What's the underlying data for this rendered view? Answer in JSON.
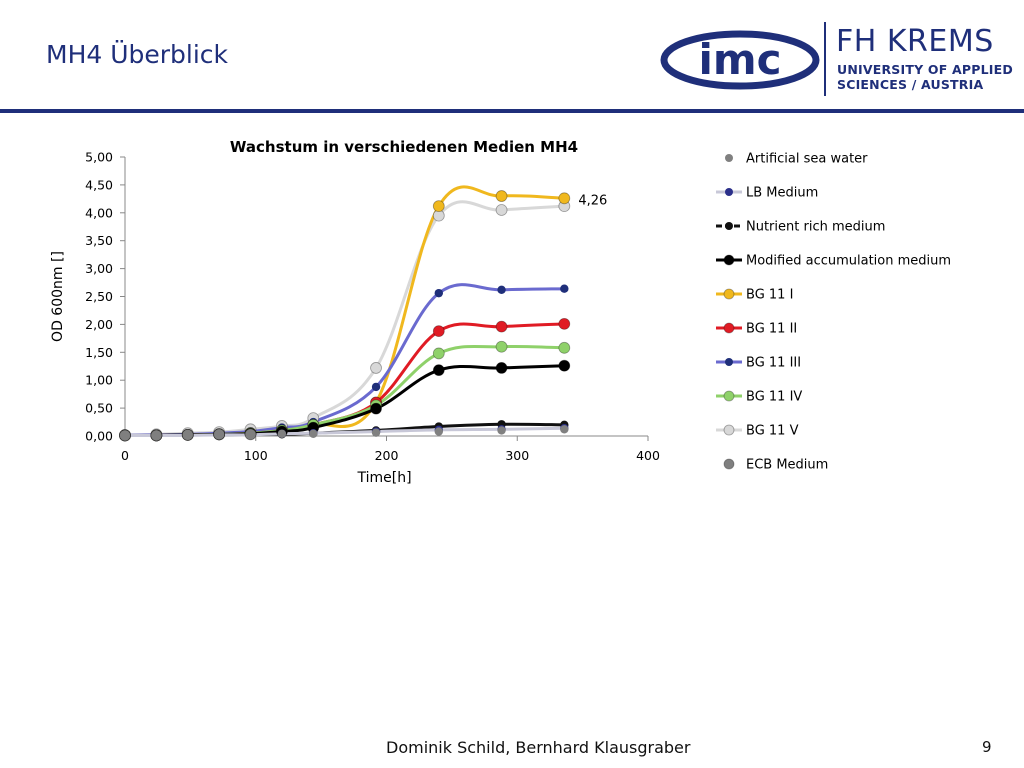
{
  "slide": {
    "title": "MH4 Überblick",
    "footer": "Dominik Schild, Bernhard Klausgraber",
    "page_number": "9"
  },
  "logo": {
    "imc_text": "imc",
    "fh_name": "FH KREMS",
    "fh_sub1": "UNIVERSITY OF APPLIED",
    "fh_sub2": "SCIENCES / AUSTRIA",
    "brand_color": "#1f2f7a"
  },
  "chart_data": {
    "type": "line",
    "title": "Wachstum in verschiedenen Medien MH4",
    "xlabel": "Time[h]",
    "ylabel": "OD 600nm []",
    "xlim": [
      0,
      400
    ],
    "ylim": [
      0,
      5
    ],
    "xticks": [
      "0",
      "100",
      "200",
      "300",
      "400"
    ],
    "yticks": [
      "0,00",
      "0,50",
      "1,00",
      "1,50",
      "2,00",
      "2,50",
      "3,00",
      "3,50",
      "4,00",
      "4,50",
      "5,00"
    ],
    "grid": false,
    "legend_position": "right",
    "annotation": {
      "text": "4,26",
      "series": "BG 11 I",
      "x": 336,
      "y": 4.26
    },
    "series": [
      {
        "name": "Artificial sea water",
        "color": "#808080",
        "line": false,
        "marker": "small",
        "x": [
          0,
          24,
          48,
          72,
          96,
          120,
          144,
          192,
          240,
          288,
          336
        ],
        "y": [
          0.01,
          0.02,
          0.03,
          0.03,
          0.03,
          0.04,
          0.04,
          0.06,
          0.08,
          0.1,
          0.12
        ]
      },
      {
        "name": "LB Medium",
        "color": "#c8c8d8",
        "line": true,
        "markerColor": "#2b2f8a",
        "marker": "small",
        "x": [
          0,
          24,
          48,
          72,
          96,
          120,
          144,
          192,
          240,
          288,
          336
        ],
        "y": [
          0.01,
          0.01,
          0.01,
          0.02,
          0.02,
          0.04,
          0.05,
          0.08,
          0.11,
          0.12,
          0.14
        ]
      },
      {
        "name": "Nutrient rich medium",
        "color": "#111111",
        "line": true,
        "dashed": true,
        "marker": "small",
        "x": [
          0,
          24,
          48,
          72,
          96,
          120,
          144,
          192,
          240,
          288,
          336
        ],
        "y": [
          0.01,
          0.01,
          0.02,
          0.02,
          0.03,
          0.03,
          0.05,
          0.1,
          0.17,
          0.21,
          0.2
        ]
      },
      {
        "name": "Modified accumulation medium",
        "color": "#000000",
        "line": true,
        "marker": "large",
        "x": [
          0,
          24,
          48,
          72,
          96,
          120,
          144,
          192,
          240,
          288,
          336
        ],
        "y": [
          0.01,
          0.01,
          0.02,
          0.03,
          0.04,
          0.08,
          0.15,
          0.49,
          1.18,
          1.22,
          1.26
        ]
      },
      {
        "name": "BG 11 I",
        "color": "#f0b81e",
        "line": true,
        "marker": "large",
        "x": [
          0,
          24,
          48,
          72,
          96,
          120,
          144,
          192,
          240,
          288,
          336
        ],
        "y": [
          0.01,
          0.01,
          0.02,
          0.03,
          0.05,
          0.1,
          0.2,
          0.6,
          4.12,
          4.3,
          4.26
        ]
      },
      {
        "name": "BG 11 II",
        "color": "#e01b24",
        "line": true,
        "marker": "large",
        "x": [
          0,
          24,
          48,
          72,
          96,
          120,
          144,
          192,
          240,
          288,
          336
        ],
        "y": [
          0.01,
          0.01,
          0.02,
          0.03,
          0.05,
          0.1,
          0.2,
          0.6,
          1.88,
          1.96,
          2.01
        ]
      },
      {
        "name": "BG 11 III",
        "color": "#6a6acf",
        "line": true,
        "markerColor": "#1f2f7a",
        "marker": "small",
        "x": [
          0,
          24,
          48,
          72,
          96,
          120,
          144,
          192,
          240,
          288,
          336
        ],
        "y": [
          0.01,
          0.02,
          0.03,
          0.05,
          0.08,
          0.15,
          0.25,
          0.88,
          2.56,
          2.62,
          2.64
        ]
      },
      {
        "name": "BG 11 IV",
        "color": "#8fd16a",
        "line": true,
        "marker": "large",
        "x": [
          0,
          24,
          48,
          72,
          96,
          120,
          144,
          192,
          240,
          288,
          336
        ],
        "y": [
          0.01,
          0.01,
          0.02,
          0.03,
          0.05,
          0.1,
          0.2,
          0.55,
          1.48,
          1.6,
          1.58
        ]
      },
      {
        "name": "BG 11 V",
        "color": "#d8d8d8",
        "line": true,
        "marker": "large",
        "x": [
          0,
          24,
          48,
          72,
          96,
          120,
          144,
          192,
          240,
          288,
          336
        ],
        "y": [
          0.02,
          0.03,
          0.05,
          0.07,
          0.12,
          0.18,
          0.32,
          1.22,
          3.95,
          4.05,
          4.12
        ]
      },
      {
        "name": "ECB Medium",
        "color": "#7f7f7f",
        "line": false,
        "marker": "large",
        "x": [
          0,
          24,
          48,
          72,
          96
        ],
        "y": [
          0.01,
          0.01,
          0.02,
          0.03,
          0.03
        ]
      }
    ]
  }
}
